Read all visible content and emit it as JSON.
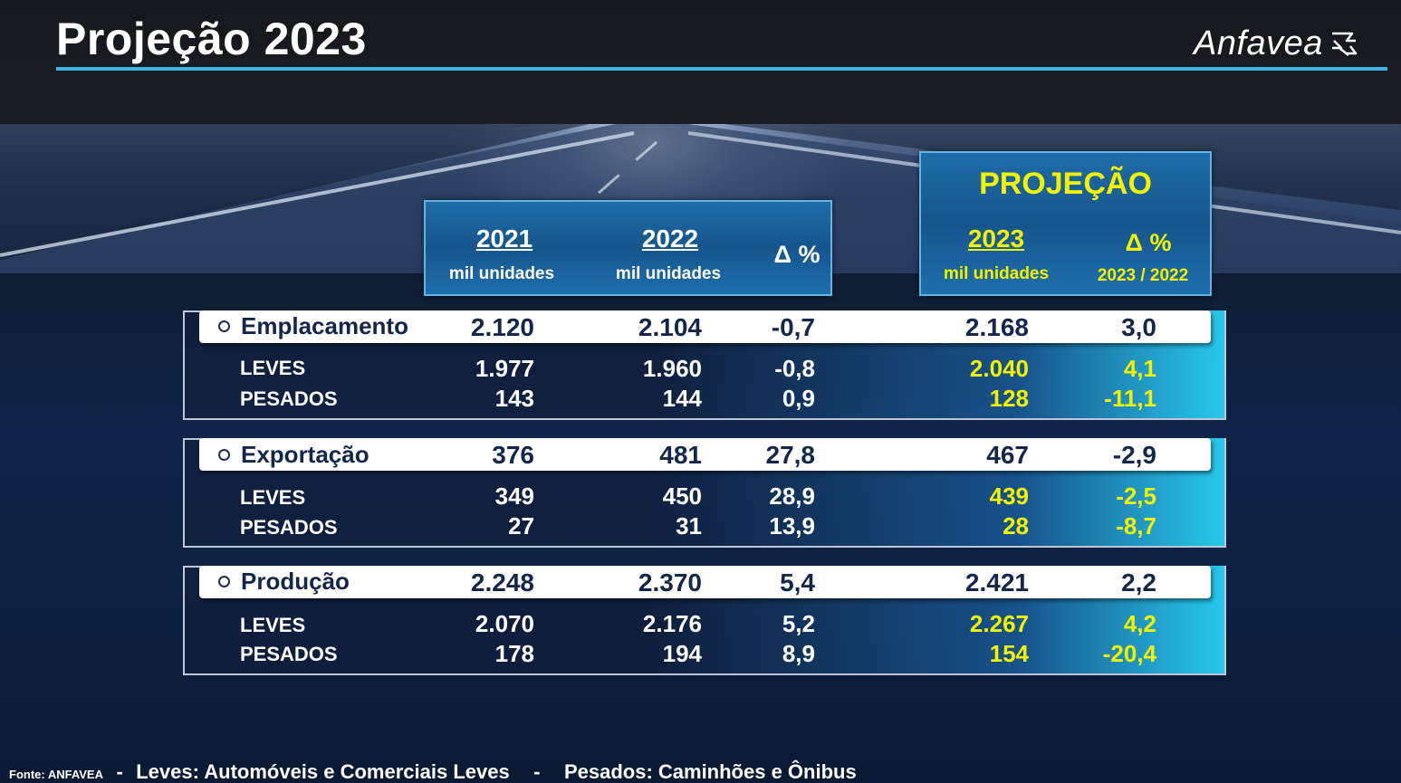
{
  "title": "Projeção 2023",
  "logo": {
    "text": "Anfavea",
    "icon": "anfavea-mark-icon"
  },
  "headers": {
    "y2021": {
      "year": "2021",
      "unit": "mil unidades"
    },
    "y2022": {
      "year": "2022",
      "unit": "mil unidades"
    },
    "delta": "Δ %",
    "projection_title": "PROJEÇÃO",
    "y2023": {
      "year": "2023",
      "unit": "mil unidades"
    },
    "delta_proj": {
      "label": "Δ %",
      "sub": "2023 / 2022"
    }
  },
  "groups": [
    {
      "label": "Emplacamento",
      "values": [
        "2.120",
        "2.104",
        "-0,7",
        "2.168",
        "3,0"
      ],
      "rows": [
        {
          "label": "LEVES",
          "values": [
            "1.977",
            "1.960",
            "-0,8",
            "2.040",
            "4,1"
          ]
        },
        {
          "label": "PESADOS",
          "values": [
            "143",
            "144",
            "0,9",
            "128",
            "-11,1"
          ]
        }
      ]
    },
    {
      "label": "Exportação",
      "values": [
        "376",
        "481",
        "27,8",
        "467",
        "-2,9"
      ],
      "rows": [
        {
          "label": "LEVES",
          "values": [
            "349",
            "450",
            "28,9",
            "439",
            "-2,5"
          ]
        },
        {
          "label": "PESADOS",
          "values": [
            "27",
            "31",
            "13,9",
            "28",
            "-8,7"
          ]
        }
      ]
    },
    {
      "label": "Produção",
      "values": [
        "2.248",
        "2.370",
        "5,4",
        "2.421",
        "2,2"
      ],
      "rows": [
        {
          "label": "LEVES",
          "values": [
            "2.070",
            "2.176",
            "5,2",
            "2.267",
            "4,2"
          ]
        },
        {
          "label": "PESADOS",
          "values": [
            "178",
            "194",
            "8,9",
            "154",
            "-20,4"
          ]
        }
      ]
    }
  ],
  "footer": {
    "source": "Fonte: ANFAVEA",
    "sep": "-",
    "leves_note": "Leves: Automóveis e Comerciais Leves",
    "pesados_note": "Pesados: Caminhões e Ônibus"
  },
  "colors": {
    "accent": "#3fb6e6",
    "highlight": "#f2f200",
    "navy": "#14264a"
  }
}
